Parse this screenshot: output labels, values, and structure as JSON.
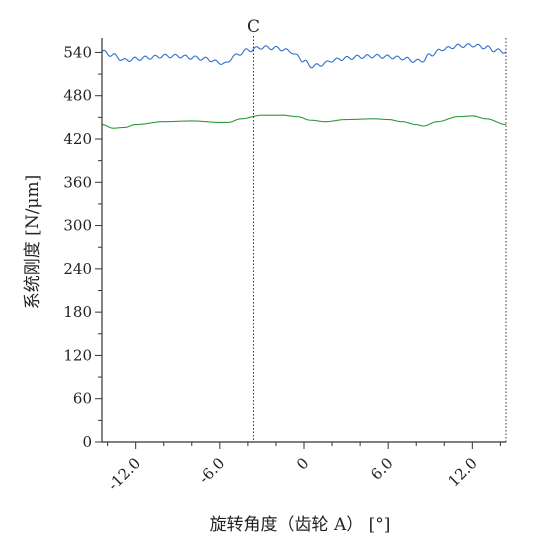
{
  "chart_data": {
    "type": "line",
    "xlabel": "旋转角度（齿轮 A） [°]",
    "ylabel": "系统刚度 [N/μm]",
    "xlim": [
      -14.4,
      14.4
    ],
    "ylim": [
      0,
      560
    ],
    "xticks": [
      -12.0,
      -6.0,
      0,
      6.0,
      12.0
    ],
    "xtick_labels": [
      "-12.0",
      "-6.0",
      "0",
      "6.0",
      "12.0"
    ],
    "yticks": [
      0,
      60,
      120,
      180,
      240,
      300,
      360,
      420,
      480,
      540
    ],
    "ytick_labels": [
      "0",
      "60",
      "120",
      "180",
      "240",
      "300",
      "360",
      "420",
      "480",
      "540"
    ],
    "cursor": {
      "label": "C",
      "x": -3.6
    },
    "series": [
      {
        "color": "#2e6fd0",
        "x": [
          -14.4,
          -13.6,
          -12.8,
          -12.0,
          -11.0,
          -10.0,
          -9.0,
          -8.0,
          -7.0,
          -6.0,
          -5.6,
          -5.0,
          -4.0,
          -3.0,
          -2.0,
          -1.0,
          -0.5,
          0.0,
          0.5,
          1.0,
          1.5,
          2.0,
          3.0,
          4.0,
          5.0,
          6.0,
          7.0,
          8.0,
          8.5,
          9.0,
          10.0,
          11.0,
          12.0,
          13.0,
          13.6,
          14.4
        ],
        "y": [
          541,
          536,
          529,
          531,
          533,
          535,
          535,
          533,
          531,
          526,
          524,
          535,
          543,
          547,
          546,
          542,
          535,
          528,
          521,
          522,
          525,
          529,
          532,
          534,
          535,
          534,
          532,
          528,
          529,
          537,
          545,
          549,
          550,
          547,
          543,
          541
        ]
      },
      {
        "color": "#2a9a3a",
        "x": [
          -14.4,
          -13.6,
          -12.8,
          -12.0,
          -10.0,
          -8.0,
          -6.0,
          -5.4,
          -4.5,
          -3.0,
          -1.5,
          -0.5,
          0.5,
          1.5,
          3.0,
          5.0,
          6.0,
          7.0,
          8.0,
          8.5,
          9.5,
          11.0,
          12.0,
          13.0,
          14.4
        ],
        "y": [
          440,
          435,
          436,
          440,
          444,
          445,
          443,
          443,
          448,
          453,
          453,
          451,
          446,
          444,
          447,
          448,
          447,
          444,
          440,
          438,
          444,
          451,
          452,
          448,
          440
        ]
      }
    ]
  }
}
